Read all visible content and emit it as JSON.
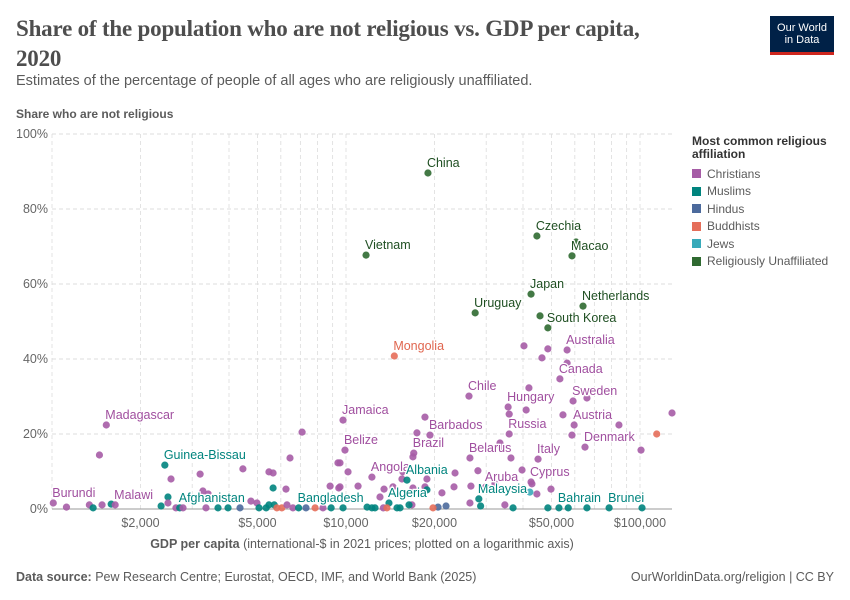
{
  "header": {
    "title": "Share of the population who are not religious vs. GDP per capita, 2020",
    "subtitle": "Estimates of the percentage of people of all ages who are religiously unaffiliated.",
    "logo_line1": "Our World",
    "logo_line2": "in Data"
  },
  "footer": {
    "source_label": "Data source:",
    "source_text": "Pew Research Centre; Eurostat, OECD, IMF, and World Bank (2025)",
    "credit": "OurWorldinData.org/religion | CC BY"
  },
  "chart_data": {
    "type": "scatter",
    "title": "Share of the population who are not religious vs. GDP per capita, 2020",
    "ylabel": "Share who are not religious",
    "xlabel_bold": "GDP per capita",
    "xlabel_rest": "(international-$ in 2021 prices; plotted on a logarithmic axis)",
    "x_scale": "log",
    "xlim": [
      1000,
      130000
    ],
    "ylim": [
      0,
      100
    ],
    "x_ticks": [
      {
        "v": 2000,
        "label": "$2,000"
      },
      {
        "v": 5000,
        "label": "$5,000"
      },
      {
        "v": 10000,
        "label": "$10,000"
      },
      {
        "v": 20000,
        "label": "$20,000"
      },
      {
        "v": 50000,
        "label": "$50,000"
      },
      {
        "v": 100000,
        "label": "$100,000"
      }
    ],
    "y_ticks": [
      {
        "v": 0,
        "label": "0%"
      },
      {
        "v": 20,
        "label": "20%"
      },
      {
        "v": 40,
        "label": "40%"
      },
      {
        "v": 60,
        "label": "60%"
      },
      {
        "v": 80,
        "label": "80%"
      },
      {
        "v": 100,
        "label": "100%"
      }
    ],
    "grid": true,
    "legend": {
      "title": "Most common religious affiliation",
      "placement": "right",
      "items": [
        {
          "key": "c",
          "name": "Christians",
          "color": "#a65ca6"
        },
        {
          "key": "m",
          "name": "Muslims",
          "color": "#00847e"
        },
        {
          "key": "h",
          "name": "Hindus",
          "color": "#4c6a9c"
        },
        {
          "key": "b",
          "name": "Buddhists",
          "color": "#e56e5a"
        },
        {
          "key": "j",
          "name": "Jews",
          "color": "#38aaba"
        },
        {
          "key": "u",
          "name": "Religiously Unaffiliated",
          "color": "#2f6a31"
        }
      ]
    },
    "points": [
      [
        19000,
        89.6,
        "u",
        "China"
      ],
      [
        44600,
        72.8,
        "u",
        "Czechia"
      ],
      [
        58700,
        67.5,
        "u",
        "Macao"
      ],
      [
        60600,
        71.2,
        "u",
        ""
      ],
      [
        11700,
        67.7,
        "u",
        "Vietnam"
      ],
      [
        42600,
        57.3,
        "u",
        "Japan"
      ],
      [
        64000,
        54.1,
        "u",
        "Netherlands"
      ],
      [
        27500,
        52.3,
        "u",
        "Uruguay"
      ],
      [
        45700,
        51.5,
        "u",
        ""
      ],
      [
        48600,
        48.3,
        "u",
        "South Korea"
      ],
      [
        14600,
        40.8,
        "b",
        "Mongolia"
      ],
      [
        56500,
        42.4,
        "c",
        "Australia"
      ],
      [
        40300,
        43.5,
        "c",
        ""
      ],
      [
        48600,
        42.7,
        "c",
        ""
      ],
      [
        46400,
        40.3,
        "c",
        ""
      ],
      [
        56500,
        38.9,
        "c",
        ""
      ],
      [
        53400,
        34.7,
        "c",
        "Canada"
      ],
      [
        26200,
        30.1,
        "c",
        "Chile"
      ],
      [
        41900,
        32.3,
        "c",
        ""
      ],
      [
        59200,
        28.8,
        "c",
        "Sweden"
      ],
      [
        66000,
        29.6,
        "c",
        ""
      ],
      [
        35600,
        27.2,
        "c",
        "Hungary"
      ],
      [
        35900,
        25.3,
        "c",
        ""
      ],
      [
        41000,
        26.4,
        "c",
        ""
      ],
      [
        54700,
        25.1,
        "c",
        ""
      ],
      [
        59700,
        22.4,
        "c",
        "Austria"
      ],
      [
        84800,
        22.4,
        "c",
        ""
      ],
      [
        128500,
        25.6,
        "c",
        ""
      ],
      [
        58700,
        19.7,
        "c",
        ""
      ],
      [
        35900,
        20.0,
        "c",
        "Russia"
      ],
      [
        65000,
        16.5,
        "c",
        "Denmark"
      ],
      [
        100800,
        15.7,
        "c",
        ""
      ],
      [
        114000,
        20.0,
        "b",
        ""
      ],
      [
        45000,
        13.3,
        "c",
        "Italy"
      ],
      [
        26400,
        13.6,
        "c",
        "Belarus"
      ],
      [
        33400,
        17.6,
        "c",
        ""
      ],
      [
        33700,
        16.5,
        "c",
        ""
      ],
      [
        36400,
        13.6,
        "c",
        ""
      ],
      [
        39700,
        10.4,
        "c",
        ""
      ],
      [
        42600,
        7.2,
        "c",
        "Cyprus"
      ],
      [
        42900,
        6.7,
        "c",
        ""
      ],
      [
        44600,
        4.0,
        "c",
        ""
      ],
      [
        42200,
        4.5,
        "j",
        ""
      ],
      [
        49800,
        5.3,
        "c",
        ""
      ],
      [
        29900,
        5.9,
        "c",
        "Aruba"
      ],
      [
        30100,
        5.1,
        "c",
        ""
      ],
      [
        32100,
        6.7,
        "c",
        ""
      ],
      [
        28100,
        10.2,
        "c",
        ""
      ],
      [
        26600,
        6.1,
        "c",
        ""
      ],
      [
        26400,
        1.6,
        "c",
        ""
      ],
      [
        34700,
        1.1,
        "c",
        ""
      ],
      [
        28300,
        2.7,
        "m",
        "Malaysia"
      ],
      [
        28700,
        0.8,
        "m",
        ""
      ],
      [
        37000,
        0.3,
        "m",
        ""
      ],
      [
        53000,
        0.3,
        "m",
        "Bahrain"
      ],
      [
        48600,
        0.3,
        "m",
        ""
      ],
      [
        57000,
        0.3,
        "m",
        ""
      ],
      [
        66000,
        0.3,
        "m",
        ""
      ],
      [
        78500,
        0.3,
        "m",
        "Brunei"
      ],
      [
        101600,
        0.3,
        "m",
        ""
      ],
      [
        19300,
        19.7,
        "c",
        "Barbados"
      ],
      [
        17430,
        20.3,
        "c",
        ""
      ],
      [
        18560,
        24.5,
        "c",
        ""
      ],
      [
        17000,
        14.9,
        "c",
        "Brazil"
      ],
      [
        16890,
        13.9,
        "c",
        ""
      ],
      [
        9770,
        23.7,
        "c",
        "Jamaica"
      ],
      [
        9920,
        15.7,
        "c",
        "Belize"
      ],
      [
        9540,
        12.3,
        "c",
        ""
      ],
      [
        10160,
        9.9,
        "c",
        ""
      ],
      [
        9540,
        5.9,
        "c",
        ""
      ],
      [
        10990,
        6.1,
        "c",
        ""
      ],
      [
        12250,
        8.5,
        "c",
        "Angola"
      ],
      [
        13470,
        5.3,
        "c",
        ""
      ],
      [
        13050,
        3.2,
        "c",
        ""
      ],
      [
        14450,
        5.9,
        "c",
        ""
      ],
      [
        15620,
        9.9,
        "c",
        ""
      ],
      [
        15500,
        8.0,
        "c",
        ""
      ],
      [
        16120,
        7.7,
        "m",
        "Albania"
      ],
      [
        16890,
        5.6,
        "c",
        ""
      ],
      [
        18850,
        8.0,
        "c",
        ""
      ],
      [
        18560,
        5.9,
        "c",
        ""
      ],
      [
        18850,
        5.1,
        "m",
        ""
      ],
      [
        23490,
        9.6,
        "c",
        ""
      ],
      [
        23300,
        5.9,
        "c",
        ""
      ],
      [
        21200,
        4.3,
        "c",
        ""
      ],
      [
        20560,
        0.5,
        "h",
        ""
      ],
      [
        21890,
        0.8,
        "h",
        ""
      ],
      [
        19770,
        0.3,
        "b",
        ""
      ],
      [
        14000,
        1.6,
        "m",
        "Algeria"
      ],
      [
        9770,
        0.3,
        "m",
        ""
      ],
      [
        11800,
        0.5,
        "m",
        ""
      ],
      [
        12250,
        0.3,
        "m",
        ""
      ],
      [
        12550,
        0.3,
        "m",
        ""
      ],
      [
        13400,
        0.3,
        "c",
        ""
      ],
      [
        13780,
        0.3,
        "b",
        ""
      ],
      [
        14910,
        0.3,
        "m",
        ""
      ],
      [
        15270,
        0.3,
        "m",
        ""
      ],
      [
        16760,
        1.1,
        "c",
        ""
      ],
      [
        16380,
        1.1,
        "m",
        ""
      ],
      [
        1010,
        1.6,
        "c",
        "Burundi"
      ],
      [
        1120,
        0.5,
        "c",
        ""
      ],
      [
        1340,
        1.1,
        "c",
        ""
      ],
      [
        1380,
        0.3,
        "m",
        ""
      ],
      [
        1450,
        14.4,
        "c",
        ""
      ],
      [
        1480,
        1.1,
        "c",
        ""
      ],
      [
        1530,
        22.4,
        "c",
        "Madagascar"
      ],
      [
        1590,
        1.3,
        "m",
        ""
      ],
      [
        1640,
        1.1,
        "c",
        "Malawi"
      ],
      [
        2350,
        0.8,
        "m",
        ""
      ],
      [
        2420,
        11.7,
        "m",
        "Guinea-Bissau"
      ],
      [
        2480,
        3.2,
        "m",
        ""
      ],
      [
        2480,
        1.6,
        "c",
        ""
      ],
      [
        2540,
        8.0,
        "c",
        ""
      ],
      [
        2640,
        0.3,
        "c",
        ""
      ],
      [
        2720,
        0.3,
        "m",
        "Afghanistan"
      ],
      [
        2790,
        0.3,
        "c",
        ""
      ],
      [
        3190,
        9.3,
        "c",
        ""
      ],
      [
        3260,
        4.8,
        "c",
        ""
      ],
      [
        3400,
        4.0,
        "c",
        ""
      ],
      [
        3340,
        0.3,
        "c",
        ""
      ],
      [
        3670,
        0.3,
        "m",
        ""
      ],
      [
        3970,
        0.3,
        "m",
        ""
      ],
      [
        4360,
        0.3,
        "h",
        ""
      ],
      [
        4460,
        10.7,
        "c",
        ""
      ],
      [
        4750,
        2.1,
        "c",
        ""
      ],
      [
        4980,
        1.6,
        "c",
        ""
      ],
      [
        5060,
        0.3,
        "m",
        ""
      ],
      [
        5350,
        0.3,
        "m",
        ""
      ],
      [
        5470,
        9.9,
        "c",
        ""
      ],
      [
        5650,
        9.6,
        "c",
        ""
      ],
      [
        5650,
        5.6,
        "m",
        ""
      ],
      [
        5470,
        1.1,
        "m",
        ""
      ],
      [
        5700,
        1.1,
        "m",
        ""
      ],
      [
        5820,
        0.3,
        "b",
        ""
      ],
      [
        6050,
        0.3,
        "b",
        ""
      ],
      [
        6250,
        5.3,
        "c",
        ""
      ],
      [
        6300,
        1.1,
        "c",
        ""
      ],
      [
        6450,
        13.6,
        "c",
        ""
      ],
      [
        6600,
        0.3,
        "c",
        ""
      ],
      [
        6900,
        0.3,
        "m",
        "Bangladesh"
      ],
      [
        7090,
        20.5,
        "c",
        ""
      ],
      [
        7310,
        0.3,
        "h",
        ""
      ],
      [
        7850,
        0.3,
        "b",
        ""
      ],
      [
        8350,
        0.3,
        "c",
        ""
      ],
      [
        8830,
        6.1,
        "c",
        ""
      ],
      [
        8900,
        0.3,
        "m",
        ""
      ],
      [
        9390,
        12.3,
        "c",
        ""
      ],
      [
        9450,
        5.6,
        "c",
        ""
      ]
    ]
  }
}
